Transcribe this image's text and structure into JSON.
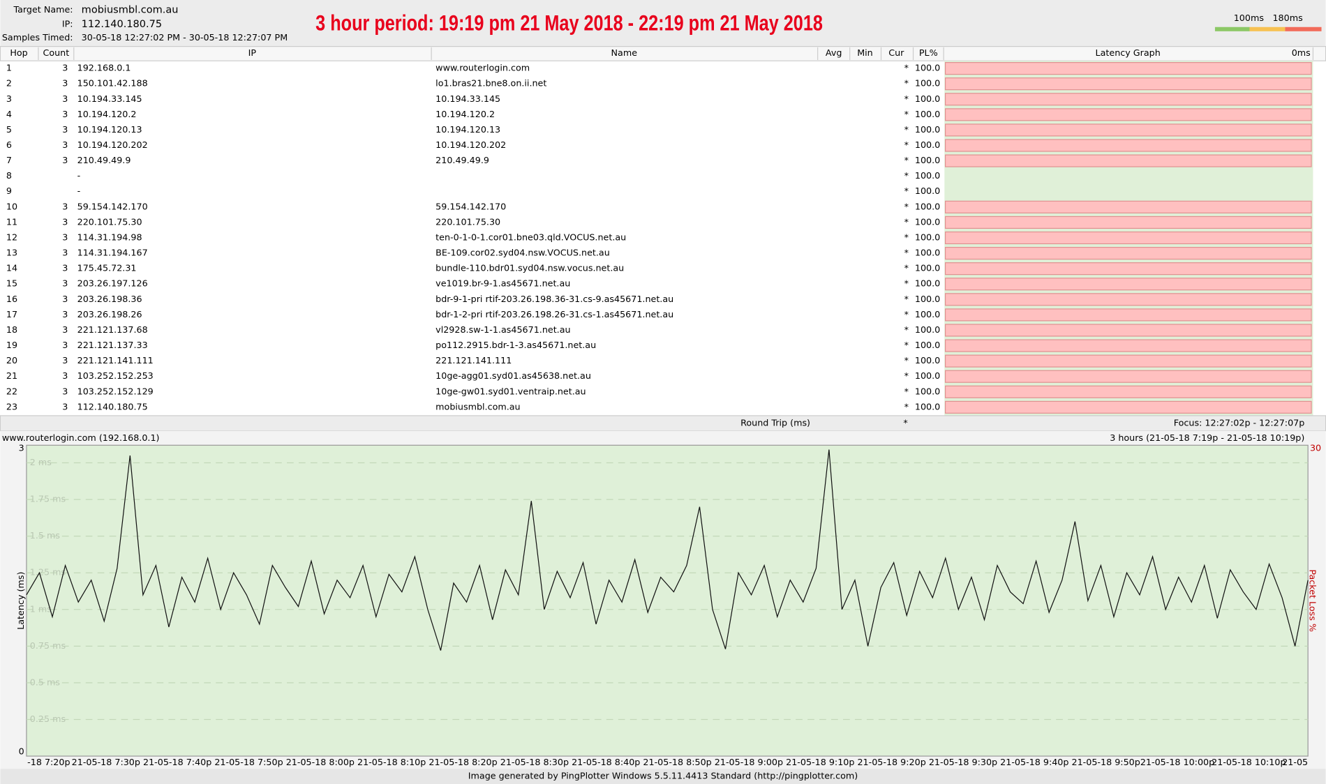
{
  "header": {
    "target_name_label": "Target Name:",
    "target_name": "mobiusmbl.com.au",
    "ip_label": "IP:",
    "ip": "112.140.180.75",
    "samples_label": "Samples Timed:",
    "samples": "30-05-18 12:27:02 PM - 30-05-18 12:27:07 PM",
    "banner": "3 hour period:  19:19 pm 21 May 2018 - 22:19 pm 21 May 2018",
    "scale_labels": [
      "100ms",
      "180ms"
    ]
  },
  "table": {
    "columns": [
      "Hop",
      "Count",
      "IP",
      "Name",
      "Avg",
      "Min",
      "Cur",
      "PL%",
      "Latency Graph",
      "0ms"
    ],
    "rows": [
      {
        "hop": 1,
        "count": 3,
        "ip": "192.168.0.1",
        "name": "www.routerlogin.com",
        "cur": "*",
        "pl": "100.0"
      },
      {
        "hop": 2,
        "count": 3,
        "ip": "150.101.42.188",
        "name": "lo1.bras21.bne8.on.ii.net",
        "cur": "*",
        "pl": "100.0"
      },
      {
        "hop": 3,
        "count": 3,
        "ip": "10.194.33.145",
        "name": "10.194.33.145",
        "cur": "*",
        "pl": "100.0"
      },
      {
        "hop": 4,
        "count": 3,
        "ip": "10.194.120.2",
        "name": "10.194.120.2",
        "cur": "*",
        "pl": "100.0"
      },
      {
        "hop": 5,
        "count": 3,
        "ip": "10.194.120.13",
        "name": "10.194.120.13",
        "cur": "*",
        "pl": "100.0"
      },
      {
        "hop": 6,
        "count": 3,
        "ip": "10.194.120.202",
        "name": "10.194.120.202",
        "cur": "*",
        "pl": "100.0"
      },
      {
        "hop": 7,
        "count": 3,
        "ip": "210.49.49.9",
        "name": "210.49.49.9",
        "cur": "*",
        "pl": "100.0"
      },
      {
        "hop": 8,
        "ip": "-",
        "cur": "*",
        "pl": "100.0"
      },
      {
        "hop": 9,
        "ip": "-",
        "cur": "*",
        "pl": "100.0"
      },
      {
        "hop": 10,
        "count": 3,
        "ip": "59.154.142.170",
        "name": "59.154.142.170",
        "cur": "*",
        "pl": "100.0"
      },
      {
        "hop": 11,
        "count": 3,
        "ip": "220.101.75.30",
        "name": "220.101.75.30",
        "cur": "*",
        "pl": "100.0"
      },
      {
        "hop": 12,
        "count": 3,
        "ip": "114.31.194.98",
        "name": "ten-0-1-0-1.cor01.bne03.qld.VOCUS.net.au",
        "cur": "*",
        "pl": "100.0"
      },
      {
        "hop": 13,
        "count": 3,
        "ip": "114.31.194.167",
        "name": "BE-109.cor02.syd04.nsw.VOCUS.net.au",
        "cur": "*",
        "pl": "100.0"
      },
      {
        "hop": 14,
        "count": 3,
        "ip": "175.45.72.31",
        "name": "bundle-110.bdr01.syd04.nsw.vocus.net.au",
        "cur": "*",
        "pl": "100.0"
      },
      {
        "hop": 15,
        "count": 3,
        "ip": "203.26.197.126",
        "name": "ve1019.br-9-1.as45671.net.au",
        "cur": "*",
        "pl": "100.0"
      },
      {
        "hop": 16,
        "count": 3,
        "ip": "203.26.198.36",
        "name": "bdr-9-1-pri rtif-203.26.198.36-31.cs-9.as45671.net.au",
        "cur": "*",
        "pl": "100.0"
      },
      {
        "hop": 17,
        "count": 3,
        "ip": "203.26.198.26",
        "name": "bdr-1-2-pri rtif-203.26.198.26-31.cs-1.as45671.net.au",
        "cur": "*",
        "pl": "100.0"
      },
      {
        "hop": 18,
        "count": 3,
        "ip": "221.121.137.68",
        "name": "vl2928.sw-1-1.as45671.net.au",
        "cur": "*",
        "pl": "100.0"
      },
      {
        "hop": 19,
        "count": 3,
        "ip": "221.121.137.33",
        "name": "po112.2915.bdr-1-3.as45671.net.au",
        "cur": "*",
        "pl": "100.0"
      },
      {
        "hop": 20,
        "count": 3,
        "ip": "221.121.141.111",
        "name": "221.121.141.111",
        "cur": "*",
        "pl": "100.0"
      },
      {
        "hop": 21,
        "count": 3,
        "ip": "103.252.152.253",
        "name": "10ge-agg01.syd01.as45638.net.au",
        "cur": "*",
        "pl": "100.0"
      },
      {
        "hop": 22,
        "count": 3,
        "ip": "103.252.152.129",
        "name": "10ge-gw01.syd01.ventraip.net.au",
        "cur": "*",
        "pl": "100.0"
      },
      {
        "hop": 23,
        "count": 3,
        "ip": "112.140.180.75",
        "name": "mobiusmbl.com.au",
        "cur": "*",
        "pl": "100.0"
      }
    ],
    "footer": {
      "label": "Round Trip (ms)",
      "cur": "*",
      "focus": "Focus: 12:27:02p - 12:27:07p"
    }
  },
  "graph": {
    "title": "www.routerlogin.com (192.168.0.1)",
    "range": "3 hours (21-05-18 7:19p - 21-05-18 10:19p)",
    "y_label": "Latency (ms)",
    "y2_label": "Packet Loss %",
    "y2_top": "30",
    "y_top": "3",
    "ylim": [
      0,
      2.12
    ],
    "yticks": [
      {
        "value": 0,
        "label": "0"
      },
      {
        "value": 0.25,
        "label": "0.25 ms"
      },
      {
        "value": 0.5,
        "label": "0.5 ms"
      },
      {
        "value": 0.75,
        "label": "0.75 ms"
      },
      {
        "value": 1,
        "label": "1 ms"
      },
      {
        "value": 1.25,
        "label": "1.25 ms"
      },
      {
        "value": 1.5,
        "label": "1.5 ms"
      },
      {
        "value": 1.75,
        "label": "1.75 ms"
      },
      {
        "value": 2,
        "label": "2 ms"
      }
    ],
    "x_labels": [
      "-18 7:20p",
      "21-05-18 7:30p",
      "21-05-18 7:40p",
      "21-05-18 7:50p",
      "21-05-18 8:00p",
      "21-05-18 8:10p",
      "21-05-18 8:20p",
      "21-05-18 8:30p",
      "21-05-18 8:40p",
      "21-05-18 8:50p",
      "21-05-18 9:00p",
      "21-05-18 9:10p",
      "21-05-18 9:20p",
      "21-05-18 9:30p",
      "21-05-18 9:40p",
      "21-05-18 9:50p",
      "21-05-18 10:00p",
      "21-05-18 10:10p",
      "21-05"
    ],
    "values": [
      1.1,
      1.25,
      0.95,
      1.3,
      1.05,
      1.2,
      0.92,
      1.28,
      2.05,
      1.1,
      1.3,
      0.88,
      1.22,
      1.05,
      1.35,
      1.0,
      1.25,
      1.1,
      0.9,
      1.3,
      1.15,
      1.02,
      1.33,
      0.97,
      1.2,
      1.08,
      1.3,
      0.95,
      1.24,
      1.12,
      1.36,
      1.0,
      0.72,
      1.18,
      1.05,
      1.3,
      0.93,
      1.27,
      1.1,
      1.74,
      1.0,
      1.26,
      1.08,
      1.32,
      0.9,
      1.2,
      1.05,
      1.34,
      0.98,
      1.22,
      1.12,
      1.3,
      1.7,
      1.0,
      0.73,
      1.25,
      1.1,
      1.3,
      0.95,
      1.2,
      1.05,
      1.28,
      2.09,
      1.0,
      1.2,
      0.75,
      1.15,
      1.32,
      0.96,
      1.26,
      1.08,
      1.35,
      1.0,
      1.22,
      0.93,
      1.3,
      1.12,
      1.04,
      1.33,
      0.98,
      1.2,
      1.6,
      1.06,
      1.3,
      0.95,
      1.25,
      1.1,
      1.36,
      1.0,
      1.22,
      1.05,
      1.3,
      0.94,
      1.27,
      1.12,
      1.0,
      1.31,
      1.08,
      0.75,
      1.2
    ]
  },
  "footer": "Image generated by PingPlotter Windows 5.5.11.4413 Standard (http://pingplotter.com)"
}
